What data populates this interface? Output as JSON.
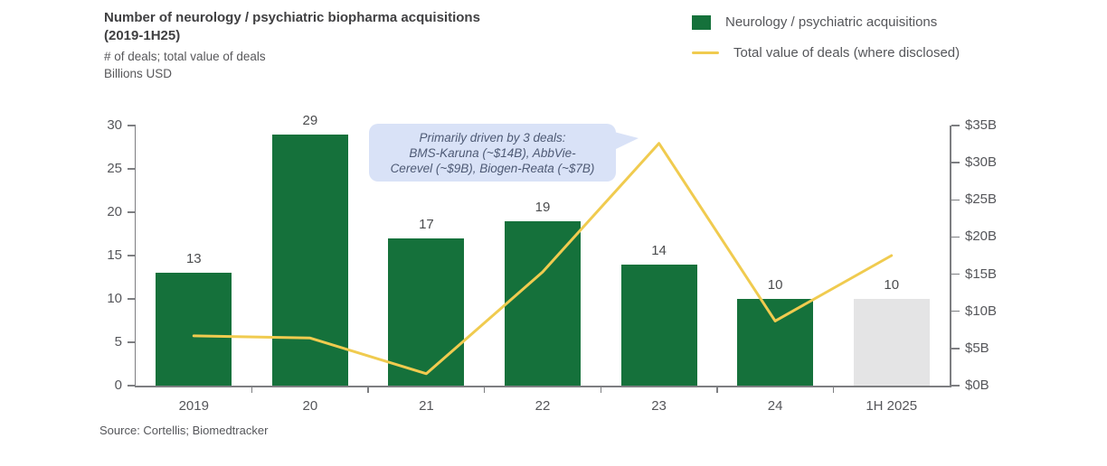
{
  "header": {
    "title_line1": "Number of neurology / psychiatric biopharma acquisitions",
    "title_line2": "(2019-1H25)",
    "subtitle_line1": "# of deals; total value of deals",
    "subtitle_line2": "Billions USD"
  },
  "legend": {
    "items": [
      {
        "label": "Neurology / psychiatric acquisitions",
        "marker": "square",
        "color": "#15713B"
      },
      {
        "label": "Total value of deals (where disclosed)",
        "marker": "line",
        "color": "#F0CB4F"
      }
    ]
  },
  "annotation": {
    "lines": [
      "Primarily driven by 3 deals:",
      "BMS-Karuna (~$14B), AbbVie-",
      "Cerevel (~$9B), Biogen-Reata (~$7B)"
    ],
    "bg_color": "#D9E2F7",
    "text_color": "#4E5A75",
    "points_to": "2023 line peak"
  },
  "source": "Source: Cortellis; Biomedtracker",
  "colors": {
    "bar_green": "#15713B",
    "bar_gray_last": "#E4E4E5",
    "line_yellow": "#F0CB4F",
    "axis": "#7D7E81",
    "text_gray": "#55565A"
  },
  "chart_data": {
    "type": "bar",
    "subtype": "bar-line-combo",
    "categories": [
      "2019",
      "20",
      "21",
      "22",
      "23",
      "24",
      "1H 2025"
    ],
    "series": [
      {
        "name": "Neurology / psychiatric acquisitions",
        "type": "bar",
        "axis": "left",
        "values": [
          13,
          29,
          17,
          19,
          14,
          10,
          10
        ],
        "value_labels": [
          "13",
          "29",
          "17",
          "19",
          "14",
          "10",
          "10"
        ],
        "bar_colors": [
          "#15713B",
          "#15713B",
          "#15713B",
          "#15713B",
          "#15713B",
          "#15713B",
          "#E4E4E5"
        ]
      },
      {
        "name": "Total value of deals (where disclosed)",
        "type": "line",
        "axis": "right",
        "values_usd_billions": [
          6.7,
          6.4,
          1.6,
          15.3,
          32.6,
          8.7,
          17.5
        ],
        "color": "#F0CB4F"
      }
    ],
    "left_axis": {
      "min": 0,
      "max": 30,
      "step": 5,
      "ticks": [
        "0",
        "5",
        "10",
        "15",
        "20",
        "25",
        "30"
      ]
    },
    "right_axis": {
      "min": 0,
      "max": 35,
      "step": 5,
      "ticks": [
        "$0B",
        "$5B",
        "$10B",
        "$15B",
        "$20B",
        "$25B",
        "$30B",
        "$35B"
      ]
    },
    "title": "Number of neurology / psychiatric biopharma acquisitions (2019-1H25)",
    "ylabel_left": "# of deals",
    "ylabel_right": "Billions USD",
    "grid": false,
    "legend_position": "top-right"
  }
}
